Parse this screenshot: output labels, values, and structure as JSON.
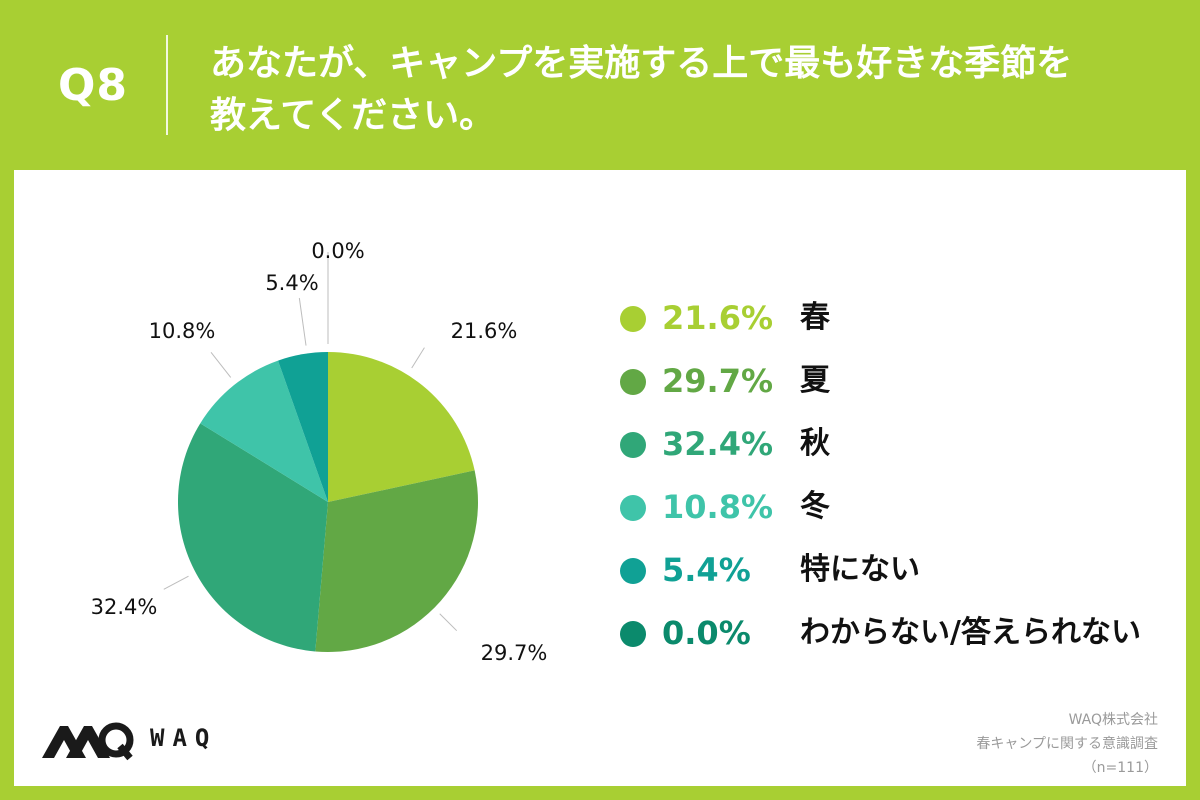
{
  "header": {
    "question_number": "Q8",
    "question_line1": "あなたが、キャンプを実施する上で最も好きな季節を",
    "question_line2": "教えてください。"
  },
  "colors": {
    "background": "#a8cf33",
    "panel": "#ffffff",
    "slices": [
      "#a8cf33",
      "#62a845",
      "#30a778",
      "#3fc4a9",
      "#10a195",
      "#0b8a6c"
    ]
  },
  "chart_data": {
    "type": "pie",
    "categories": [
      "春",
      "夏",
      "秋",
      "冬",
      "特にない",
      "わからない/答えられない"
    ],
    "values": [
      21.6,
      29.7,
      32.4,
      10.8,
      5.4,
      0.0
    ],
    "value_labels": [
      "21.6%",
      "29.7%",
      "32.4%",
      "10.8%",
      "5.4%",
      "0.0%"
    ],
    "legend_placement": "right",
    "start": "12 o'clock",
    "direction": "clockwise"
  },
  "footer": {
    "logo_text": "WAQ",
    "source_line1": "WAQ株式会社",
    "source_line2": "春キャンプに関する意識調査",
    "source_line3": "（n=111）"
  }
}
